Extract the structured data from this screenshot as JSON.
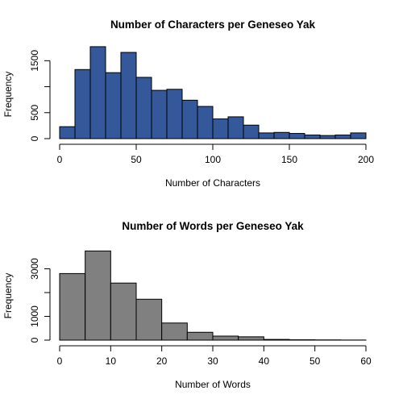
{
  "chart_data": [
    {
      "type": "bar",
      "title": "Number of Characters per Geneseo Yak",
      "xlabel": "Number of Characters",
      "ylabel": "Frequency",
      "bar_color": "#34589a",
      "bin_width": 10,
      "xlim": [
        0,
        200
      ],
      "ylim": [
        0,
        1800
      ],
      "x_ticks": [
        0,
        50,
        100,
        150,
        200
      ],
      "y_ticks": [
        0,
        500,
        1000,
        1500
      ],
      "y_tick_labels": [
        "0",
        "500",
        "",
        "1500"
      ],
      "bins": [
        0,
        10,
        20,
        30,
        40,
        50,
        60,
        70,
        80,
        90,
        100,
        110,
        120,
        130,
        140,
        150,
        160,
        170,
        180,
        190
      ],
      "values": [
        230,
        1330,
        1770,
        1270,
        1660,
        1180,
        930,
        950,
        740,
        620,
        380,
        420,
        260,
        110,
        120,
        100,
        70,
        60,
        70,
        110
      ]
    },
    {
      "type": "bar",
      "title": "Number of Words per Geneseo Yak",
      "xlabel": "Number of Words",
      "ylabel": "Frequency",
      "bar_color": "#808080",
      "bin_width": 5,
      "xlim": [
        0,
        60
      ],
      "ylim": [
        0,
        4000
      ],
      "x_ticks": [
        0,
        10,
        20,
        30,
        40,
        50,
        60
      ],
      "y_ticks": [
        0,
        1000,
        2000,
        3000
      ],
      "y_tick_labels": [
        "0",
        "1000",
        "",
        "3000"
      ],
      "bins": [
        0,
        5,
        10,
        15,
        20,
        25,
        30,
        35,
        40,
        45,
        50,
        55
      ],
      "values": [
        2800,
        3750,
        2400,
        1720,
        720,
        330,
        170,
        140,
        30,
        15,
        10,
        5
      ]
    }
  ]
}
